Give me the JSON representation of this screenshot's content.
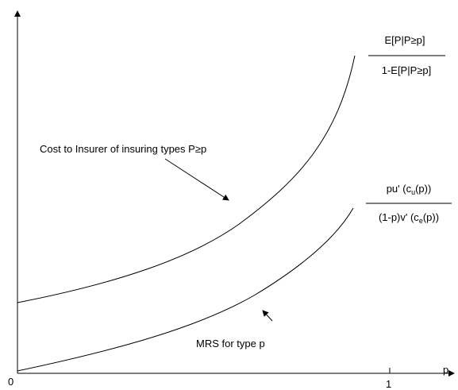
{
  "axes": {
    "origin": "0",
    "x_tick": "1",
    "x_label": "p"
  },
  "curves": [
    {
      "annotation": "Cost to Insurer of insuring types P≥p",
      "numerator": "E[P|P≥p]",
      "denominator": "1-E[P|P≥p]"
    },
    {
      "annotation": "MRS for type p",
      "numerator": [
        "pu' (c",
        "u",
        "(p))"
      ],
      "denominator": [
        "(1-p)v' (c",
        "e",
        "(p))"
      ]
    }
  ]
}
